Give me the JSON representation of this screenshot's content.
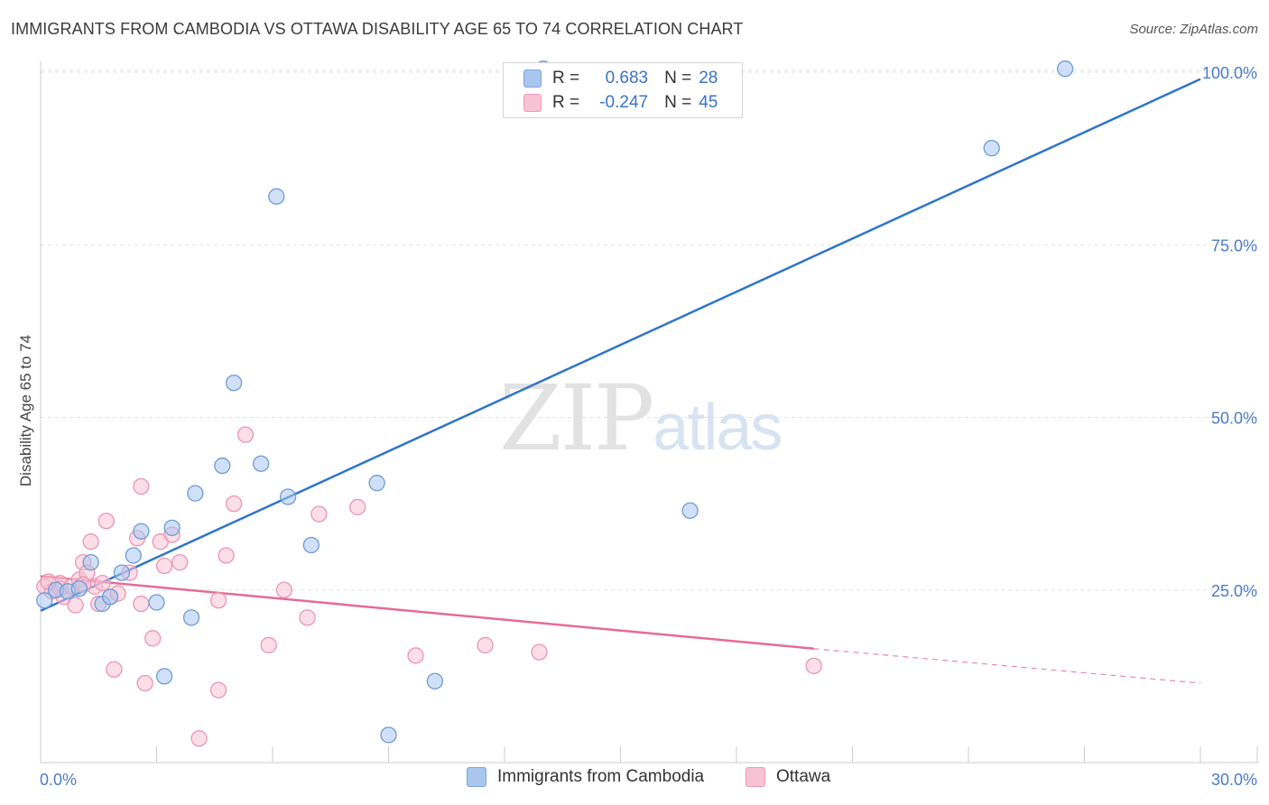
{
  "title": "IMMIGRANTS FROM CAMBODIA VS OTTAWA DISABILITY AGE 65 TO 74 CORRELATION CHART",
  "source": "Source: ZipAtlas.com",
  "watermark": {
    "zip": "ZIP",
    "atlas": "atlas"
  },
  "legend_top": {
    "rows": [
      {
        "r_label": "R =",
        "r_value": "0.683",
        "n_label": "N =",
        "n_value": "28",
        "color": "#a9c7ee",
        "border": "#7aa5de"
      },
      {
        "r_label": "R =",
        "r_value": "-0.247",
        "n_label": "N =",
        "n_value": "45",
        "color": "#f7c3d4",
        "border": "#ee9ab6"
      }
    ]
  },
  "legend_bottom": {
    "items": [
      {
        "label": "Immigrants from Cambodia",
        "color": "#a9c7ee",
        "border": "#7aa5de"
      },
      {
        "label": "Ottawa",
        "color": "#f7c3d4",
        "border": "#ee9ab6"
      }
    ]
  },
  "colors": {
    "blue_fill": "#a9c7ee",
    "blue_stroke": "#6e9bd8",
    "blue_line": "#2f74cc",
    "pink_fill": "#f7c3d4",
    "pink_stroke": "#ec95b1",
    "pink_line": "#e56b97",
    "grid": "#e3e3e3",
    "axis": "#cccccc",
    "tick_text": "#4a7cc8"
  },
  "chart_data": {
    "type": "scatter",
    "title": "IMMIGRANTS FROM CAMBODIA VS OTTAWA DISABILITY AGE 65 TO 74 CORRELATION CHART",
    "xlabel": "",
    "ylabel": "Disability Age 65 to 74",
    "xlim": [
      0,
      30
    ],
    "ylim": [
      0,
      101
    ],
    "x_ticks": [
      {
        "value": 0,
        "label": "0.0%"
      },
      {
        "value": 30,
        "label": "30.0%"
      }
    ],
    "x_minor_ticks": [
      0,
      3,
      6,
      9,
      12,
      15,
      18,
      21,
      24,
      27,
      30
    ],
    "y_ticks": [
      {
        "value": 25,
        "label": "25.0%"
      },
      {
        "value": 50,
        "label": "50.0%"
      },
      {
        "value": 75,
        "label": "75.0%"
      },
      {
        "value": 100,
        "label": "100.0%"
      }
    ],
    "grid": true,
    "legend_position": "top-center",
    "series": [
      {
        "name": "Immigrants from Cambodia",
        "color": "blue",
        "r": 0.683,
        "n": 28,
        "points": [
          [
            0.1,
            23.5
          ],
          [
            0.4,
            25.0
          ],
          [
            0.7,
            24.8
          ],
          [
            1.0,
            25.2
          ],
          [
            1.3,
            29.0
          ],
          [
            1.6,
            23.0
          ],
          [
            1.8,
            24.0
          ],
          [
            2.1,
            27.5
          ],
          [
            2.4,
            30.0
          ],
          [
            2.6,
            33.5
          ],
          [
            3.0,
            23.2
          ],
          [
            3.2,
            12.5
          ],
          [
            3.4,
            34.0
          ],
          [
            3.9,
            21.0
          ],
          [
            4.0,
            39.0
          ],
          [
            4.7,
            43.0
          ],
          [
            5.0,
            55.0
          ],
          [
            5.7,
            43.3
          ],
          [
            6.1,
            82.0
          ],
          [
            6.4,
            38.5
          ],
          [
            7.0,
            31.5
          ],
          [
            8.7,
            40.5
          ],
          [
            9.0,
            4.0
          ],
          [
            10.2,
            11.8
          ],
          [
            16.8,
            36.5
          ],
          [
            24.6,
            89.0
          ],
          [
            26.5,
            100.5
          ],
          [
            13.0,
            100.5
          ]
        ],
        "trend": {
          "x": [
            0,
            30
          ],
          "y": [
            22.0,
            99.0
          ],
          "style": "solid"
        }
      },
      {
        "name": "Ottawa",
        "color": "pink",
        "r": -0.247,
        "n": 45,
        "points": [
          [
            0.1,
            25.5
          ],
          [
            0.3,
            24.8
          ],
          [
            0.5,
            26.0
          ],
          [
            0.6,
            24.0
          ],
          [
            0.8,
            25.5
          ],
          [
            0.9,
            22.8
          ],
          [
            1.0,
            26.5
          ],
          [
            1.1,
            29.0
          ],
          [
            1.2,
            27.5
          ],
          [
            1.3,
            32.0
          ],
          [
            1.4,
            25.5
          ],
          [
            1.5,
            23.0
          ],
          [
            1.6,
            26.0
          ],
          [
            1.7,
            35.0
          ],
          [
            1.8,
            24.0
          ],
          [
            1.9,
            13.5
          ],
          [
            2.0,
            24.5
          ],
          [
            2.3,
            27.5
          ],
          [
            2.5,
            32.5
          ],
          [
            2.6,
            23.0
          ],
          [
            2.6,
            40.0
          ],
          [
            2.7,
            11.5
          ],
          [
            2.9,
            18.0
          ],
          [
            3.1,
            32.0
          ],
          [
            3.2,
            28.5
          ],
          [
            3.4,
            33.0
          ],
          [
            3.6,
            29.0
          ],
          [
            4.1,
            3.5
          ],
          [
            4.6,
            10.5
          ],
          [
            4.6,
            23.5
          ],
          [
            4.8,
            30.0
          ],
          [
            5.0,
            37.5
          ],
          [
            5.3,
            47.5
          ],
          [
            5.9,
            17.0
          ],
          [
            6.3,
            25.0
          ],
          [
            6.9,
            21.0
          ],
          [
            7.2,
            36.0
          ],
          [
            8.2,
            37.0
          ],
          [
            9.7,
            15.5
          ],
          [
            11.5,
            17.0
          ],
          [
            12.9,
            16.0
          ],
          [
            20.0,
            14.0
          ],
          [
            0.5,
            25.2
          ],
          [
            1.1,
            25.8
          ],
          [
            0.2,
            26.2
          ]
        ],
        "trend": {
          "x": [
            0,
            20.0
          ],
          "y": [
            27.0,
            16.5
          ],
          "style": "solid"
        },
        "trend_extension": {
          "x": [
            20.0,
            30
          ],
          "y": [
            16.5,
            11.5
          ],
          "style": "dashed"
        }
      }
    ]
  }
}
